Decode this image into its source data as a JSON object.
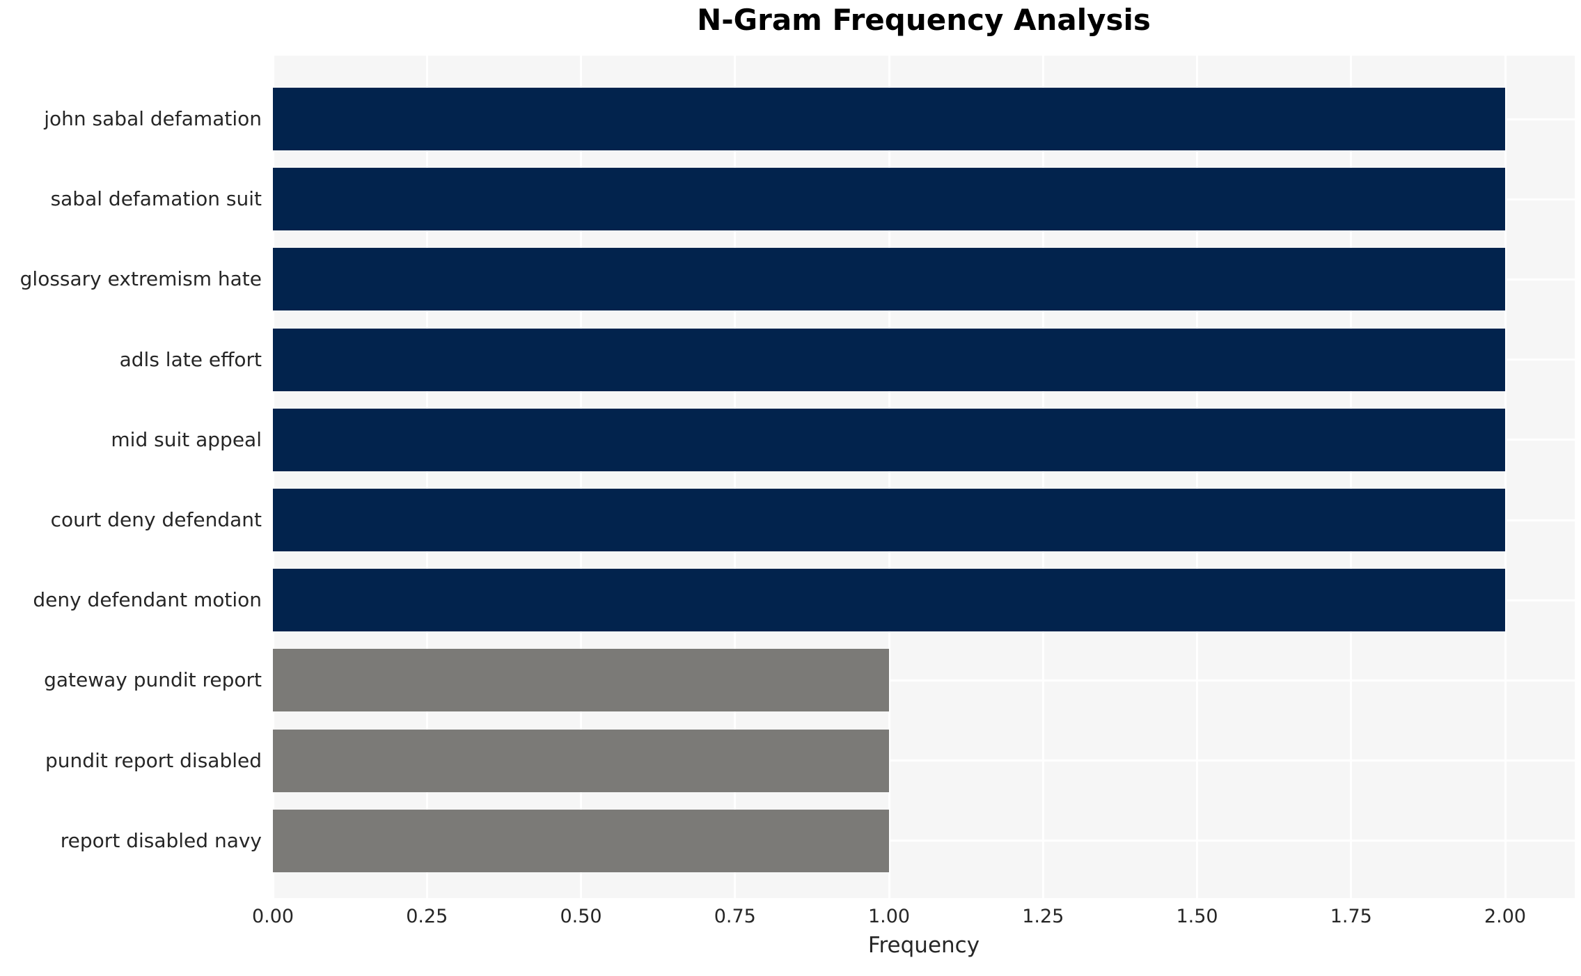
{
  "chart_data": {
    "type": "bar",
    "orientation": "horizontal",
    "title": "N-Gram Frequency Analysis",
    "xlabel": "Frequency",
    "ylabel": "",
    "categories": [
      "john sabal defamation",
      "sabal defamation suit",
      "glossary extremism hate",
      "adls late effort",
      "mid suit appeal",
      "court deny defendant",
      "deny defendant motion",
      "gateway pundit report",
      "pundit report disabled",
      "report disabled navy"
    ],
    "values": [
      2,
      2,
      2,
      2,
      2,
      2,
      2,
      1,
      1,
      1
    ],
    "bar_colors": [
      "#02234d",
      "#02234d",
      "#02234d",
      "#02234d",
      "#02234d",
      "#02234d",
      "#02234d",
      "#7b7a77",
      "#7b7a77",
      "#7b7a77"
    ],
    "xlim": [
      0,
      2.1127
    ],
    "xticks": [
      {
        "value": 0.0,
        "label": "0.00"
      },
      {
        "value": 0.25,
        "label": "0.25"
      },
      {
        "value": 0.5,
        "label": "0.50"
      },
      {
        "value": 0.75,
        "label": "0.75"
      },
      {
        "value": 1.0,
        "label": "1.00"
      },
      {
        "value": 1.25,
        "label": "1.25"
      },
      {
        "value": 1.5,
        "label": "1.50"
      },
      {
        "value": 1.75,
        "label": "1.75"
      },
      {
        "value": 2.0,
        "label": "2.00"
      }
    ],
    "grid": true,
    "legend": false,
    "colors": {
      "plot_background": "#f6f6f6",
      "grid_line": "#ffffff",
      "bar_high": "#02234d",
      "bar_low": "#7b7a77",
      "text": "#262626",
      "title": "#000000"
    }
  }
}
